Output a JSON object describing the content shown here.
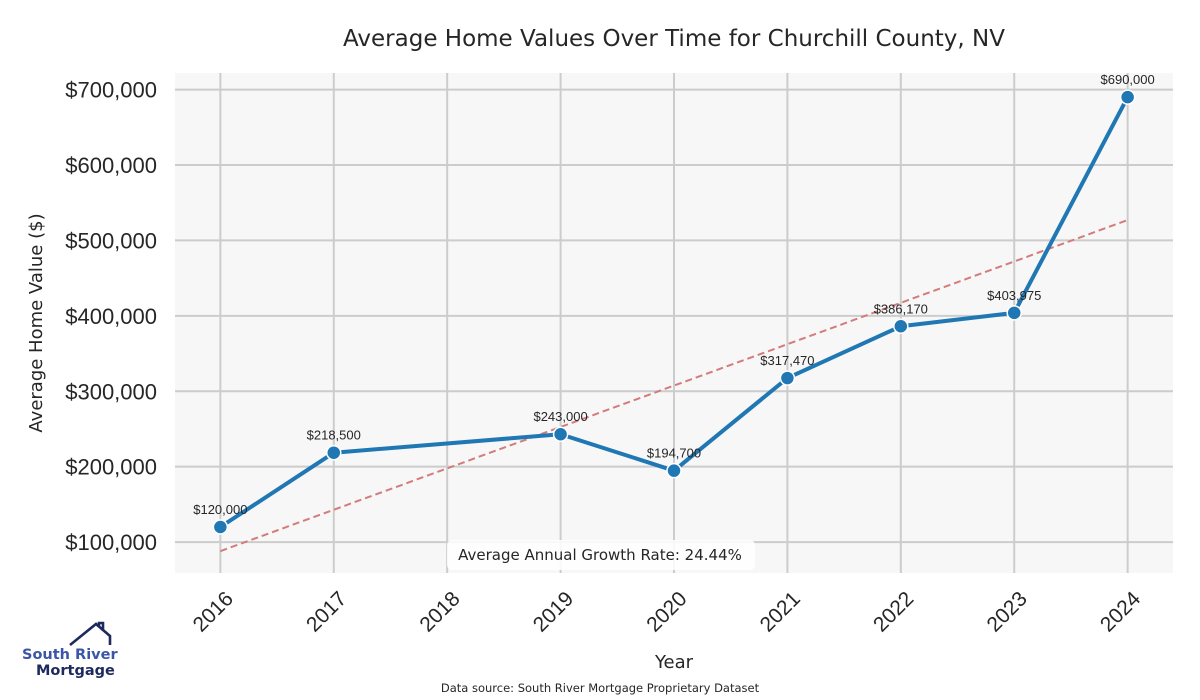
{
  "chart_data": {
    "type": "line",
    "title": "Average Home Values Over Time for Churchill County, NV",
    "xlabel": "Year",
    "ylabel": "Average Home Value ($)",
    "x_ticks": [
      "2016",
      "2017",
      "2018",
      "2019",
      "2020",
      "2021",
      "2022",
      "2023",
      "2024"
    ],
    "xlim": [
      2015.6,
      2024.4
    ],
    "y_ticks": [
      100000,
      200000,
      300000,
      400000,
      500000,
      600000,
      700000
    ],
    "y_tick_labels": [
      "$100,000",
      "$200,000",
      "$300,000",
      "$400,000",
      "$500,000",
      "$600,000",
      "$700,000"
    ],
    "ylim": [
      59000,
      722000
    ],
    "grid": true,
    "series": [
      {
        "name": "Average Home Value",
        "color": "#1f77b4",
        "x": [
          2016,
          2017,
          2019,
          2020,
          2021,
          2022,
          2023,
          2024
        ],
        "values": [
          120000,
          218500,
          243000,
          194700,
          317470,
          386170,
          403975,
          690000
        ],
        "labels": [
          "$120,000",
          "$218,500",
          "$243,000",
          "$194,700",
          "$317,470",
          "$386,170",
          "$403,975",
          "$690,000"
        ]
      },
      {
        "name": "Trend",
        "color": "#d47b7b",
        "style": "dashed",
        "x": [
          2016,
          2024
        ],
        "values": [
          88000,
          527000
        ]
      }
    ],
    "annotation": "Average Annual Growth Rate: 24.44%",
    "source": "Data source: South River Mortgage Proprietary Dataset"
  },
  "logo": {
    "line1": "South River",
    "line2": "Mortgage",
    "colors": {
      "primary": "#3b56a6",
      "secondary": "#1e2a5e"
    }
  },
  "colors": {
    "plot_bg": "#f7f7f7",
    "grid": "#cccccc"
  }
}
